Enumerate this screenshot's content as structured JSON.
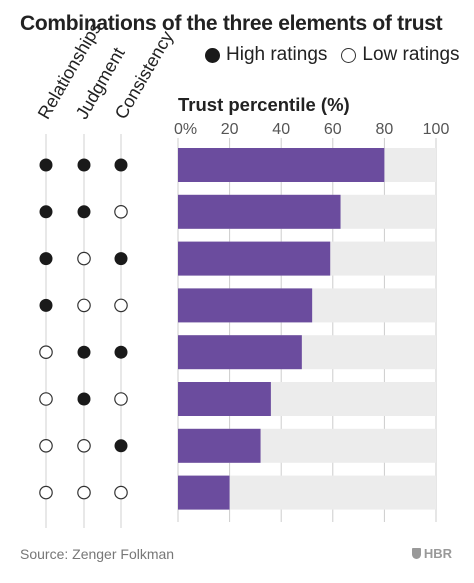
{
  "title": "Combinations of the three elements of trust",
  "legend": {
    "high_label": "High ratings",
    "low_label": "Low ratings"
  },
  "column_headers": [
    "Relationships",
    "Judgment",
    "Consistency"
  ],
  "source": "Source: Zenger Folkman",
  "brand": "HBR",
  "colors": {
    "bar": "#6b4c9e",
    "track": "#ececec",
    "filled_dot": "#1a1a1a",
    "axis_line": "#cccccc"
  },
  "chart_data": {
    "type": "bar",
    "title": "Trust percentile (%)",
    "xlim": [
      0,
      100
    ],
    "ticks": [
      "0%",
      "20",
      "40",
      "60",
      "80",
      "100"
    ],
    "rows": [
      {
        "ratings": [
          "high",
          "high",
          "high"
        ],
        "value": 80
      },
      {
        "ratings": [
          "high",
          "high",
          "low"
        ],
        "value": 63
      },
      {
        "ratings": [
          "high",
          "low",
          "high"
        ],
        "value": 59
      },
      {
        "ratings": [
          "high",
          "low",
          "low"
        ],
        "value": 52
      },
      {
        "ratings": [
          "low",
          "high",
          "high"
        ],
        "value": 48
      },
      {
        "ratings": [
          "low",
          "high",
          "low"
        ],
        "value": 36
      },
      {
        "ratings": [
          "low",
          "low",
          "high"
        ],
        "value": 32
      },
      {
        "ratings": [
          "low",
          "low",
          "low"
        ],
        "value": 20
      }
    ]
  }
}
